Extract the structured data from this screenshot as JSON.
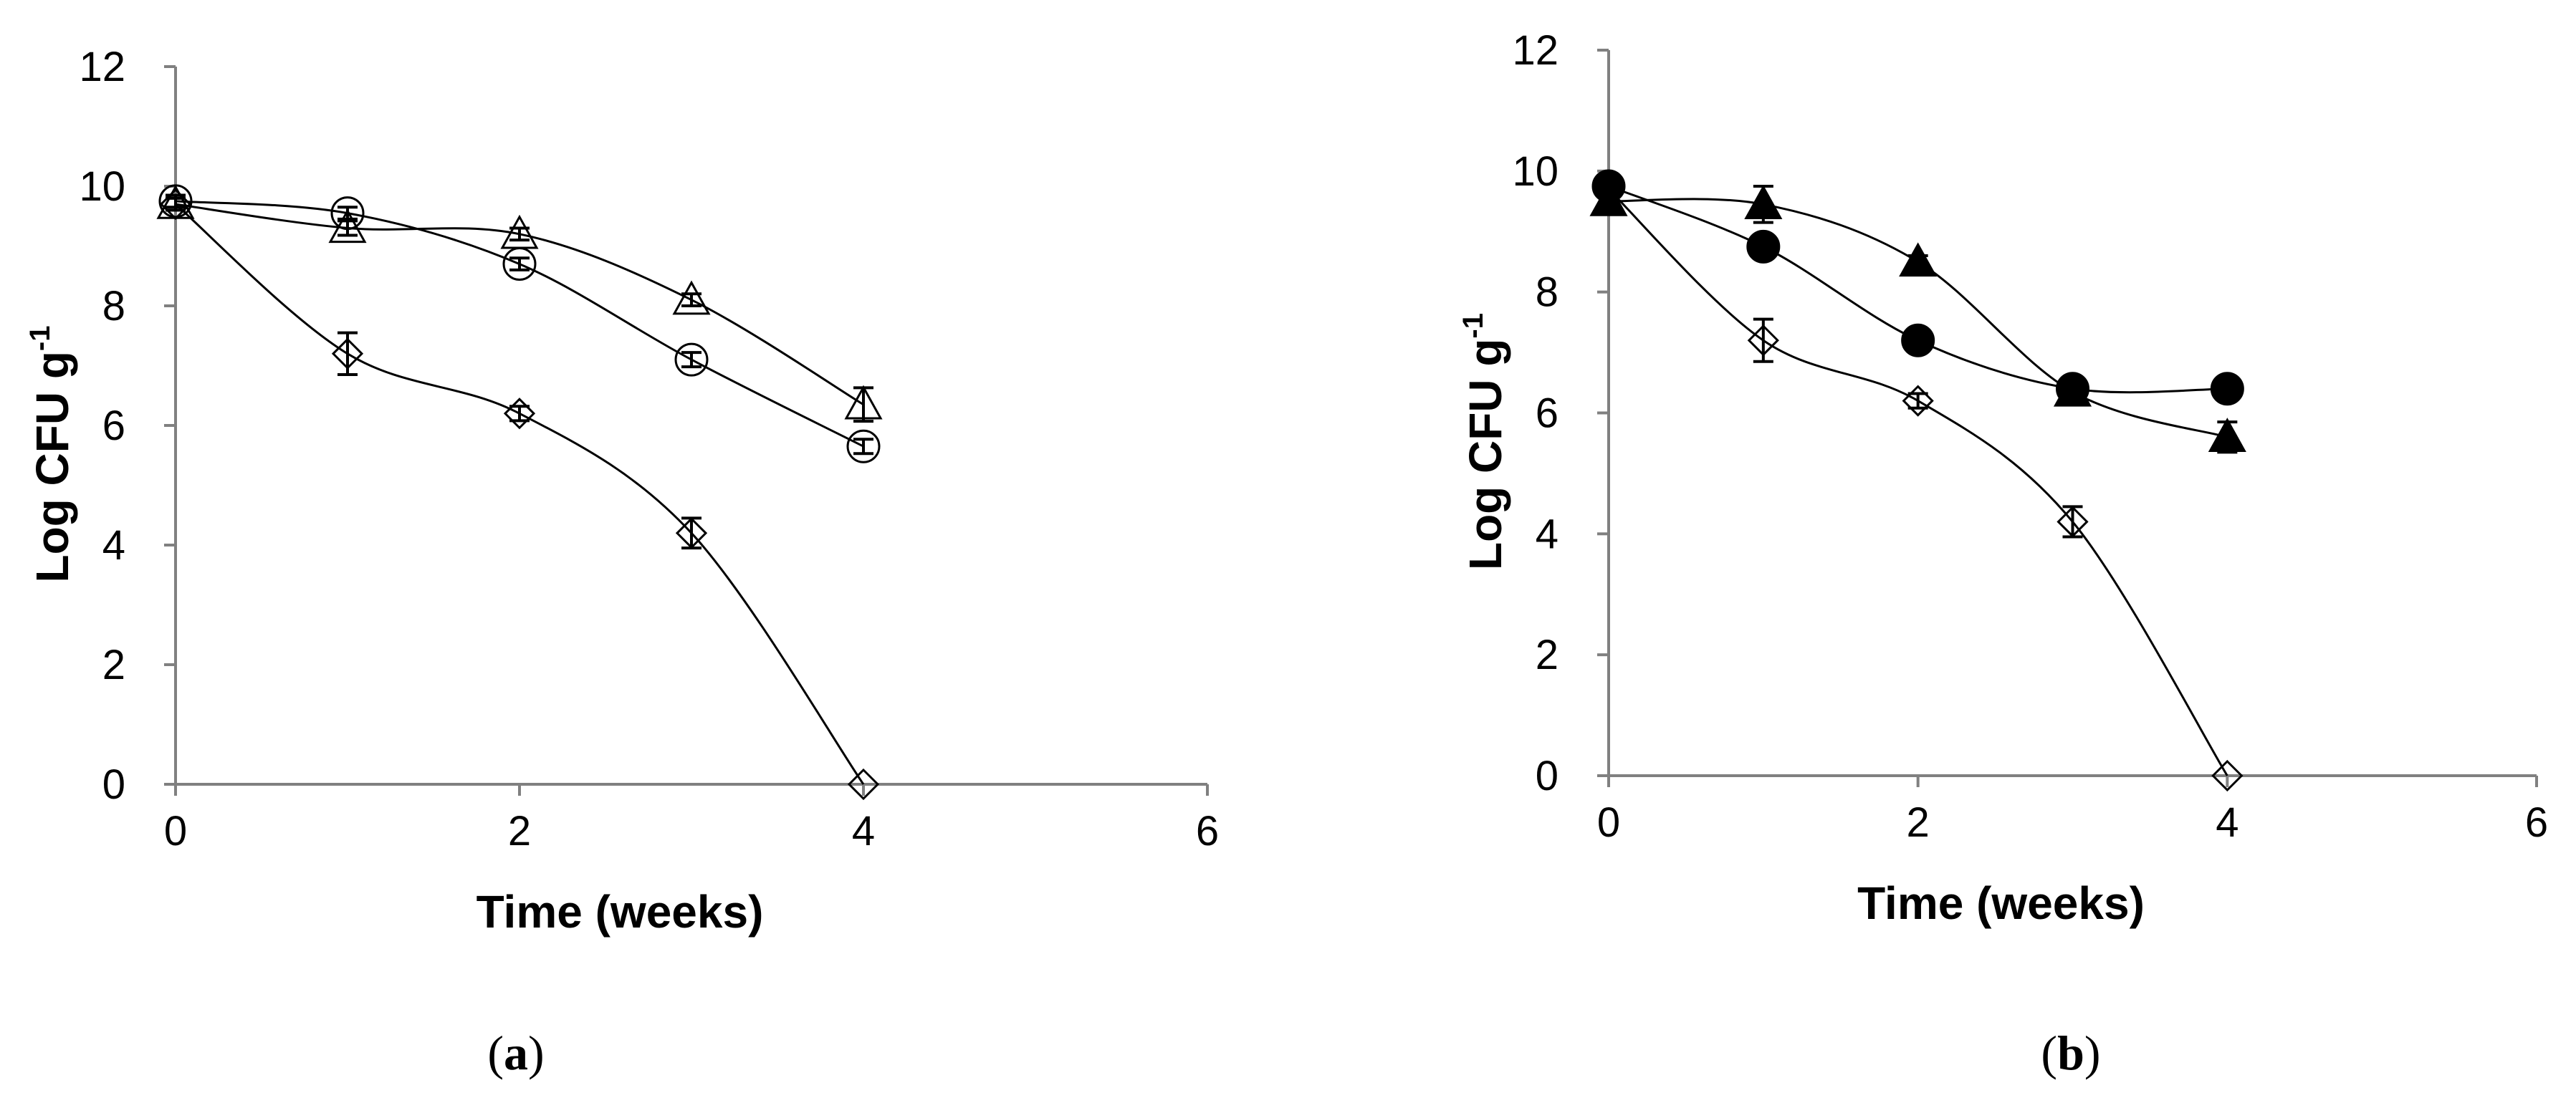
{
  "chart_data": [
    {
      "type": "scatter",
      "panel_label": "a",
      "xlabel": "Time (weeks)",
      "ylabel": "Log CFU g",
      "ylabel_sup": "-1",
      "xlim": [
        0,
        6
      ],
      "ylim": [
        0,
        12
      ],
      "xticks": [
        0,
        2,
        4,
        6
      ],
      "yticks": [
        0,
        2,
        4,
        6,
        8,
        10,
        12
      ],
      "grid": false,
      "legend": "none",
      "series": [
        {
          "marker": "open-diamond",
          "x": [
            0,
            1,
            2,
            3,
            4
          ],
          "y": [
            9.7,
            7.2,
            6.2,
            4.2,
            0.0
          ],
          "err": [
            0.1,
            0.35,
            0.12,
            0.25,
            0.0
          ]
        },
        {
          "marker": "open-circle",
          "x": [
            0,
            1,
            2,
            3,
            4
          ],
          "y": [
            9.75,
            9.55,
            8.7,
            7.1,
            5.65
          ],
          "err": [
            0.1,
            0.1,
            0.1,
            0.12,
            0.12
          ]
        },
        {
          "marker": "open-triangle",
          "x": [
            0,
            1,
            2,
            3,
            4
          ],
          "y": [
            9.7,
            9.3,
            9.2,
            8.1,
            6.35
          ],
          "err": [
            0.1,
            0.12,
            0.1,
            0.1,
            0.28
          ]
        }
      ]
    },
    {
      "type": "scatter",
      "panel_label": "b",
      "xlabel": "Time (weeks)",
      "ylabel": "Log CFU g",
      "ylabel_sup": "-1",
      "xlim": [
        0,
        6
      ],
      "ylim": [
        0,
        12
      ],
      "xticks": [
        0,
        2,
        4,
        6
      ],
      "yticks": [
        0,
        2,
        4,
        6,
        8,
        10,
        12
      ],
      "grid": false,
      "legend": "none",
      "series": [
        {
          "marker": "open-diamond",
          "x": [
            0,
            1,
            2,
            3,
            4
          ],
          "y": [
            9.7,
            7.2,
            6.2,
            4.2,
            0.0
          ],
          "err": [
            0.1,
            0.35,
            0.12,
            0.25,
            0.0
          ]
        },
        {
          "marker": "filled-circle",
          "x": [
            0,
            1,
            2,
            3,
            4
          ],
          "y": [
            9.75,
            8.75,
            7.2,
            6.4,
            6.4
          ],
          "err": [
            0.1,
            0.1,
            0.1,
            0.1,
            0.1
          ]
        },
        {
          "marker": "filled-triangle",
          "x": [
            0,
            1,
            2,
            3,
            4
          ],
          "y": [
            9.5,
            9.45,
            8.5,
            6.35,
            5.6
          ],
          "err": [
            0.1,
            0.3,
            0.1,
            0.1,
            0.25
          ]
        }
      ]
    }
  ]
}
